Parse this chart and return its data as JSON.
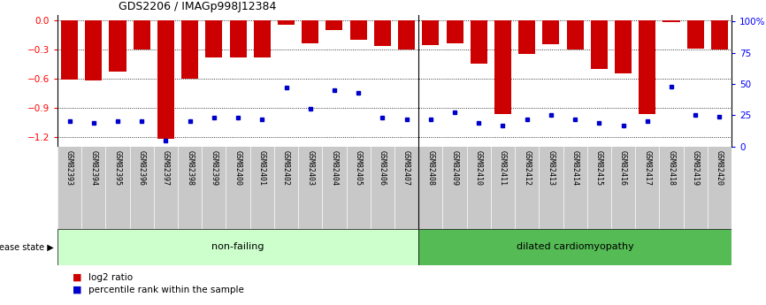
{
  "title": "GDS2206 / IMAGp998J12384",
  "samples": [
    "GSM82393",
    "GSM82394",
    "GSM82395",
    "GSM82396",
    "GSM82397",
    "GSM82398",
    "GSM82399",
    "GSM82400",
    "GSM82401",
    "GSM82402",
    "GSM82403",
    "GSM82404",
    "GSM82405",
    "GSM82406",
    "GSM82407",
    "GSM82408",
    "GSM82409",
    "GSM82410",
    "GSM82411",
    "GSM82412",
    "GSM82413",
    "GSM82414",
    "GSM82415",
    "GSM82416",
    "GSM82417",
    "GSM82418",
    "GSM82419",
    "GSM82420"
  ],
  "log2_ratio": [
    -0.61,
    -0.62,
    -0.53,
    -0.3,
    -1.22,
    -0.6,
    -0.38,
    -0.38,
    -0.38,
    -0.05,
    -0.24,
    -0.1,
    -0.2,
    -0.27,
    -0.3,
    -0.26,
    -0.24,
    -0.45,
    -0.97,
    -0.35,
    -0.25,
    -0.3,
    -0.5,
    -0.55,
    -0.97,
    -0.02,
    -0.29,
    -0.3
  ],
  "percentile": [
    20,
    19,
    20,
    20,
    5,
    20,
    23,
    23,
    22,
    47,
    30,
    45,
    43,
    23,
    22,
    22,
    27,
    19,
    17,
    22,
    25,
    22,
    19,
    17,
    20,
    48,
    25,
    24
  ],
  "non_failing_count": 15,
  "ylim_left": [
    -1.3,
    0.05
  ],
  "ylim_right": [
    0,
    105
  ],
  "yticks_left": [
    0.0,
    -0.3,
    -0.6,
    -0.9,
    -1.2
  ],
  "yticks_right": [
    0,
    25,
    50,
    75,
    100
  ],
  "bar_color": "#cc0000",
  "dot_color": "#0000cc",
  "non_failing_bg": "#ccffcc",
  "dilated_bg": "#55bb55",
  "label_bg": "#c8c8c8",
  "disease_state_label": "disease state",
  "non_failing_label": "non-failing",
  "dilated_label": "dilated cardiomyopathy",
  "legend_log2": "log2 ratio",
  "legend_pct": "percentile rank within the sample"
}
